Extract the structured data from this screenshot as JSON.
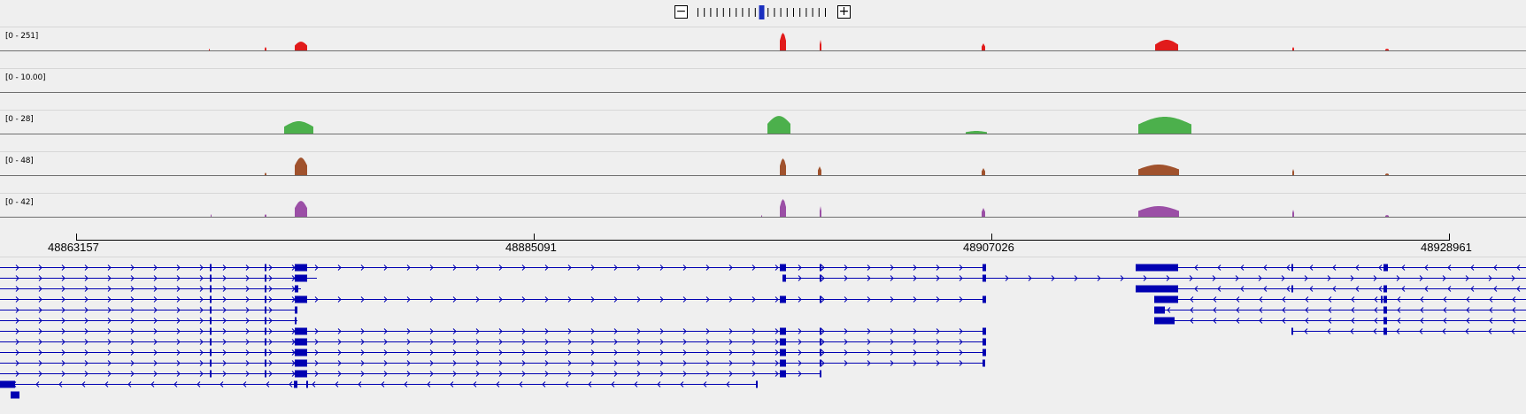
{
  "zoom": {
    "minus_icon": "minus-icon",
    "plus_icon": "plus-icon",
    "minus_glyph": "−",
    "plus_glyph": "+",
    "tick_count": 21,
    "active_tick_index": 10
  },
  "colors": {
    "background": "#efefef",
    "track_line": "#6f6f6f",
    "gene": "#0000b2",
    "zoom_active": "#1a2fbf"
  },
  "tracks": [
    {
      "label": "[0 - 251]",
      "color": "#e11b1b"
    },
    {
      "label": "[0 - 10.00]",
      "color": "#e11b1b"
    },
    {
      "label": "[0 - 28]",
      "color": "#4cb04c"
    },
    {
      "label": "[0 - 48]",
      "color": "#a0522d"
    },
    {
      "label": "[0 - 42]",
      "color": "#9b4fa6"
    }
  ],
  "ruler": {
    "labels": [
      "48863157",
      "48885091",
      "48907026",
      "48928961"
    ]
  }
}
